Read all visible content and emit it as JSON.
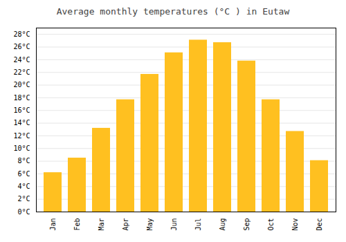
{
  "chart_data": {
    "type": "bar",
    "title": "Average monthly temperatures (°C ) in Eutaw",
    "categories": [
      "Jan",
      "Feb",
      "Mar",
      "Apr",
      "May",
      "Jun",
      "Jul",
      "Aug",
      "Sep",
      "Oct",
      "Nov",
      "Dec"
    ],
    "values": [
      6.2,
      8.5,
      13.2,
      17.7,
      21.7,
      25.1,
      27.1,
      26.7,
      23.8,
      17.7,
      12.7,
      8.1
    ],
    "color": "#FFC020",
    "ylim": [
      0,
      29
    ],
    "yticks": [
      {
        "value": 0,
        "label": "0°C"
      },
      {
        "value": 2,
        "label": "2°C"
      },
      {
        "value": 4,
        "label": "4°C"
      },
      {
        "value": 6,
        "label": "6°C"
      },
      {
        "value": 8,
        "label": "8°C"
      },
      {
        "value": 10,
        "label": "10°C"
      },
      {
        "value": 12,
        "label": "12°C"
      },
      {
        "value": 14,
        "label": "14°C"
      },
      {
        "value": 16,
        "label": "16°C"
      },
      {
        "value": 18,
        "label": "18°C"
      },
      {
        "value": 20,
        "label": "20°C"
      },
      {
        "value": 22,
        "label": "22°C"
      },
      {
        "value": 24,
        "label": "24°C"
      },
      {
        "value": 26,
        "label": "26°C"
      },
      {
        "value": 28,
        "label": "28°C"
      }
    ],
    "grid": true
  }
}
